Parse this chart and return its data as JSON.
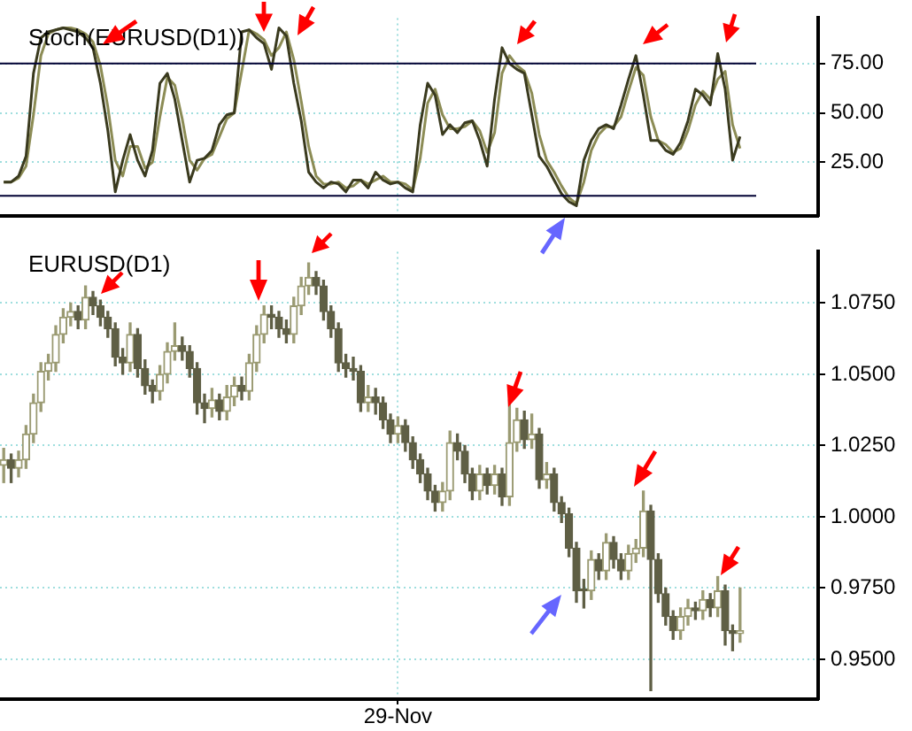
{
  "chart_data": [
    {
      "type": "line",
      "title": "Stoch(EURUSD(D1))",
      "categories": [
        null,
        null,
        null,
        null,
        null,
        null,
        null,
        null,
        null,
        null,
        null,
        null,
        null,
        null,
        null,
        null,
        null,
        null,
        null,
        null,
        null,
        null,
        null,
        null,
        null,
        null,
        null,
        null,
        null,
        null,
        null,
        null,
        null,
        null,
        null,
        null,
        null,
        null,
        null,
        null,
        null,
        null,
        null,
        null,
        null,
        null,
        null,
        null,
        null,
        null,
        null,
        null,
        null,
        null,
        null,
        null,
        null,
        null,
        null,
        null,
        null,
        null,
        null,
        null,
        null,
        null,
        null,
        null,
        null,
        null,
        null,
        null,
        null,
        null,
        null,
        null,
        null,
        null,
        null,
        null,
        null,
        null,
        null,
        null,
        null,
        null,
        null,
        null,
        null,
        null,
        null,
        null,
        null,
        null,
        null,
        null,
        null,
        null,
        null,
        null,
        null,
        null,
        null,
        null,
        null,
        null,
        null,
        null,
        null,
        null
      ],
      "series": [
        {
          "color": "#3a3a1e",
          "values": [
            15,
            15,
            18,
            28,
            70,
            88,
            91,
            92,
            93,
            92,
            91,
            88,
            83,
            65,
            41,
            10,
            26,
            39,
            26,
            18,
            31,
            65,
            70,
            57,
            36,
            15,
            26,
            27,
            31,
            44,
            49,
            50,
            91,
            92,
            88,
            85,
            72,
            93,
            89,
            65,
            46,
            20,
            15,
            12,
            15,
            14,
            10,
            16,
            16,
            12,
            20,
            16,
            14,
            15,
            12,
            10,
            44,
            65,
            59,
            39,
            44,
            40,
            45,
            46,
            36,
            23,
            57,
            83,
            75,
            72,
            70,
            49,
            28,
            23,
            16,
            9,
            5,
            3,
            26,
            36,
            42,
            44,
            42,
            54,
            67,
            79,
            59,
            36,
            36,
            31,
            29,
            35,
            46,
            62,
            59,
            54,
            80,
            62,
            26,
            38,
            null,
            null,
            null,
            null,
            null,
            null,
            null,
            null,
            null,
            null
          ]
        },
        {
          "color": "#8c8c55",
          "values": [
            15,
            15,
            17,
            23,
            49,
            79,
            90,
            92,
            93,
            93,
            92,
            90,
            86,
            74,
            53,
            26,
            18,
            33,
            33,
            22,
            25,
            48,
            68,
            64,
            47,
            26,
            21,
            27,
            29,
            38,
            47,
            50,
            71,
            92,
            90,
            87,
            79,
            83,
            91,
            77,
            56,
            33,
            18,
            14,
            14,
            15,
            12,
            13,
            16,
            14,
            16,
            18,
            15,
            15,
            14,
            11,
            27,
            55,
            62,
            49,
            42,
            42,
            43,
            46,
            41,
            30,
            40,
            70,
            79,
            74,
            71,
            60,
            39,
            26,
            20,
            13,
            7,
            4,
            15,
            31,
            39,
            43,
            43,
            48,
            61,
            73,
            69,
            48,
            36,
            34,
            30,
            32,
            41,
            54,
            61,
            57,
            67,
            71,
            44,
            32,
            null,
            null,
            null,
            null,
            null,
            null,
            null,
            null,
            null,
            null
          ]
        }
      ],
      "ylim": [
        -2,
        98
      ],
      "yticks": [
        {
          "value": 25,
          "label": "25.00"
        },
        {
          "value": 50,
          "label": "50.00"
        },
        {
          "value": 75,
          "label": "75.00"
        }
      ],
      "ref_lines": [
        {
          "axis": "y",
          "value": 75,
          "color": "#000033"
        },
        {
          "axis": "y",
          "value": 8,
          "color": "#000033"
        }
      ],
      "grid": true,
      "legend": false,
      "tick_labels": "y",
      "marker": "none"
    },
    {
      "type": "candlestick",
      "title": "EURUSD(D1)",
      "colors": [
        "#9a9a72",
        "#5f5f45",
        "#9a9a72",
        "#9a9a72",
        "#9a9a72",
        "#9a9a72",
        "#9a9a72",
        "#9a9a72",
        "#9a9a72",
        "#9a9a72",
        "#5f5f45",
        "#9a9a72",
        "#5f5f45",
        "#5f5f45",
        "#5f5f45",
        "#5f5f45",
        "#5f5f45",
        "#9a9a72",
        "#5f5f45",
        "#5f5f45",
        "#5f5f45",
        "#9a9a72",
        "#9a9a72",
        "#9a9a72",
        "#5f5f45",
        "#5f5f45",
        "#5f5f45",
        "#5f5f45",
        "#9a9a72",
        "#5f5f45",
        "#9a9a72",
        "#9a9a72",
        "#5f5f45",
        "#9a9a72",
        "#9a9a72",
        "#9a9a72",
        "#5f5f45",
        "#5f5f45",
        "#5f5f45",
        "#9a9a72",
        "#9a9a72",
        "#9a9a72",
        "#5f5f45",
        "#5f5f45",
        "#5f5f45",
        "#5f5f45",
        "#5f5f45",
        "#5f5f45",
        "#5f5f45",
        "#9a9a72",
        "#5f5f45",
        "#5f5f45",
        "#5f5f45",
        "#9a9a72",
        "#5f5f45",
        "#5f5f45",
        "#5f5f45",
        "#5f5f45",
        "#5f5f45",
        "#9a9a72",
        "#9a9a72",
        "#5f5f45",
        "#5f5f45",
        "#5f5f45",
        "#9a9a72",
        "#5f5f45",
        "#9a9a72",
        "#5f5f45",
        "#9a9a72",
        "#9a9a72",
        "#5f5f45",
        "#9a9a72",
        "#5f5f45",
        "#9a9a72",
        "#5f5f45",
        "#5f5f45",
        "#5f5f45",
        "#5f5f45",
        "#5f5f45",
        "#9a9a72",
        "#5f5f45",
        "#9a9a72",
        "#5f5f45",
        "#5f5f45",
        "#9a9a72",
        "#9a9a72",
        "#9a9a72",
        "#5f5f45",
        "#5f5f45",
        "#5f5f45",
        "#5f5f45",
        "#9a9a72",
        "#9a9a72",
        "#5f5f45",
        "#9a9a72",
        "#5f5f45",
        "#9a9a72",
        "#5f5f45",
        "#5f5f45",
        "#9a9a72",
        null,
        null,
        null,
        null,
        null,
        null,
        null,
        null,
        null,
        null
      ],
      "categories": [
        null,
        null,
        null,
        null,
        null,
        null,
        null,
        null,
        null,
        null,
        null,
        null,
        null,
        null,
        null,
        null,
        null,
        null,
        null,
        null,
        null,
        null,
        null,
        null,
        null,
        null,
        null,
        null,
        null,
        null,
        null,
        null,
        null,
        null,
        null,
        null,
        null,
        null,
        null,
        null,
        null,
        null,
        null,
        null,
        null,
        null,
        null,
        null,
        null,
        null,
        null,
        null,
        null,
        "29-Nov",
        null,
        null,
        null,
        null,
        null,
        null,
        null,
        null,
        null,
        null,
        null,
        null,
        null,
        null,
        null,
        null,
        null,
        null,
        null,
        null,
        null,
        null,
        null,
        null,
        null,
        null,
        null,
        null,
        null,
        null,
        null,
        null,
        null,
        null,
        null,
        null,
        null,
        null,
        null,
        null,
        null,
        null,
        null,
        null,
        null,
        null,
        null,
        null,
        null,
        null,
        null,
        null,
        null,
        null,
        null,
        null
      ],
      "ohlc": [
        [
          1.018,
          1.024,
          1.012,
          1.02
        ],
        [
          1.02,
          1.022,
          1.012,
          1.017
        ],
        [
          1.017,
          1.023,
          1.014,
          1.02
        ],
        [
          1.02,
          1.032,
          1.017,
          1.029
        ],
        [
          1.029,
          1.043,
          1.026,
          1.04
        ],
        [
          1.04,
          1.054,
          1.037,
          1.051
        ],
        [
          1.051,
          1.057,
          1.048,
          1.054
        ],
        [
          1.054,
          1.067,
          1.051,
          1.064
        ],
        [
          1.064,
          1.073,
          1.061,
          1.07
        ],
        [
          1.07,
          1.075,
          1.067,
          1.072
        ],
        [
          1.072,
          1.074,
          1.066,
          1.069
        ],
        [
          1.069,
          1.081,
          1.066,
          1.077
        ],
        [
          1.077,
          1.079,
          1.071,
          1.074
        ],
        [
          1.074,
          1.076,
          1.067,
          1.07
        ],
        [
          1.07,
          1.072,
          1.063,
          1.066
        ],
        [
          1.066,
          1.068,
          1.053,
          1.056
        ],
        [
          1.056,
          1.059,
          1.05,
          1.054
        ],
        [
          1.054,
          1.068,
          1.051,
          1.064
        ],
        [
          1.064,
          1.066,
          1.049,
          1.052
        ],
        [
          1.052,
          1.055,
          1.043,
          1.046
        ],
        [
          1.046,
          1.048,
          1.04,
          1.044
        ],
        [
          1.044,
          1.053,
          1.041,
          1.05
        ],
        [
          1.05,
          1.061,
          1.047,
          1.058
        ],
        [
          1.058,
          1.068,
          1.055,
          1.06
        ],
        [
          1.06,
          1.063,
          1.055,
          1.058
        ],
        [
          1.058,
          1.06,
          1.049,
          1.052
        ],
        [
          1.052,
          1.054,
          1.036,
          1.04
        ],
        [
          1.04,
          1.043,
          1.033,
          1.038
        ],
        [
          1.038,
          1.045,
          1.035,
          1.041
        ],
        [
          1.041,
          1.043,
          1.034,
          1.037
        ],
        [
          1.037,
          1.046,
          1.034,
          1.042
        ],
        [
          1.042,
          1.049,
          1.039,
          1.046
        ],
        [
          1.046,
          1.049,
          1.041,
          1.044
        ],
        [
          1.044,
          1.057,
          1.041,
          1.054
        ],
        [
          1.054,
          1.067,
          1.051,
          1.064
        ],
        [
          1.064,
          1.074,
          1.061,
          1.071
        ],
        [
          1.071,
          1.074,
          1.066,
          1.07
        ],
        [
          1.07,
          1.072,
          1.063,
          1.066
        ],
        [
          1.066,
          1.069,
          1.061,
          1.064
        ],
        [
          1.064,
          1.077,
          1.061,
          1.074
        ],
        [
          1.074,
          1.084,
          1.071,
          1.081
        ],
        [
          1.081,
          1.089,
          1.078,
          1.084
        ],
        [
          1.084,
          1.086,
          1.078,
          1.081
        ],
        [
          1.081,
          1.083,
          1.069,
          1.072
        ],
        [
          1.072,
          1.074,
          1.063,
          1.066
        ],
        [
          1.066,
          1.068,
          1.051,
          1.054
        ],
        [
          1.054,
          1.057,
          1.049,
          1.052
        ],
        [
          1.052,
          1.056,
          1.048,
          1.051
        ],
        [
          1.051,
          1.053,
          1.037,
          1.04
        ],
        [
          1.04,
          1.046,
          1.037,
          1.042
        ],
        [
          1.042,
          1.045,
          1.036,
          1.04
        ],
        [
          1.04,
          1.042,
          1.031,
          1.034
        ],
        [
          1.034,
          1.036,
          1.026,
          1.029
        ],
        [
          1.029,
          1.035,
          1.026,
          1.032
        ],
        [
          1.032,
          1.034,
          1.023,
          1.026
        ],
        [
          1.026,
          1.028,
          1.017,
          1.02
        ],
        [
          1.02,
          1.022,
          1.012,
          1.015
        ],
        [
          1.015,
          1.017,
          1.006,
          1.009
        ],
        [
          1.009,
          1.011,
          1.002,
          1.005
        ],
        [
          1.005,
          1.012,
          1.002,
          1.009
        ],
        [
          1.009,
          1.03,
          1.006,
          1.026
        ],
        [
          1.026,
          1.029,
          1.02,
          1.023
        ],
        [
          1.023,
          1.025,
          1.012,
          1.015
        ],
        [
          1.015,
          1.017,
          1.006,
          1.009
        ],
        [
          1.009,
          1.018,
          1.006,
          1.015
        ],
        [
          1.015,
          1.017,
          1.008,
          1.011
        ],
        [
          1.011,
          1.018,
          1.008,
          1.015
        ],
        [
          1.015,
          1.017,
          1.004,
          1.007
        ],
        [
          1.007,
          1.041,
          1.004,
          1.026
        ],
        [
          1.026,
          1.038,
          1.023,
          1.034
        ],
        [
          1.034,
          1.037,
          1.024,
          1.027
        ],
        [
          1.027,
          1.036,
          1.024,
          1.029
        ],
        [
          1.029,
          1.031,
          1.01,
          1.013
        ],
        [
          1.013,
          1.019,
          1.01,
          1.015
        ],
        [
          1.015,
          1.017,
          1.002,
          1.005
        ],
        [
          1.005,
          1.007,
          0.998,
          1.001
        ],
        [
          1.001,
          1.003,
          0.986,
          0.989
        ],
        [
          0.989,
          0.991,
          0.97,
          0.974
        ],
        [
          0.974,
          0.978,
          0.968,
          0.974
        ],
        [
          0.974,
          0.988,
          0.971,
          0.985
        ],
        [
          0.985,
          0.987,
          0.978,
          0.981
        ],
        [
          0.981,
          0.994,
          0.978,
          0.991
        ],
        [
          0.991,
          0.993,
          0.982,
          0.985
        ],
        [
          0.985,
          0.987,
          0.978,
          0.981
        ],
        [
          0.981,
          0.99,
          0.978,
          0.987
        ],
        [
          0.987,
          0.992,
          0.984,
          0.989
        ],
        [
          0.989,
          1.009,
          0.986,
          1.002
        ],
        [
          1.002,
          1.004,
          0.939,
          0.985
        ],
        [
          0.985,
          0.987,
          0.97,
          0.973
        ],
        [
          0.973,
          0.975,
          0.962,
          0.965
        ],
        [
          0.965,
          0.967,
          0.957,
          0.96
        ],
        [
          0.96,
          0.968,
          0.957,
          0.965
        ],
        [
          0.965,
          0.971,
          0.962,
          0.968
        ],
        [
          0.968,
          0.97,
          0.964,
          0.967
        ],
        [
          0.967,
          0.974,
          0.964,
          0.971
        ],
        [
          0.971,
          0.973,
          0.965,
          0.968
        ],
        [
          0.968,
          0.979,
          0.965,
          0.974
        ],
        [
          0.974,
          0.976,
          0.955,
          0.96
        ],
        [
          0.96,
          0.962,
          0.953,
          0.959
        ],
        [
          0.959,
          0.975,
          0.956,
          0.96
        ],
        null,
        null,
        null,
        null,
        null,
        null,
        null,
        null,
        null,
        null
      ],
      "ylim": [
        0.936,
        1.093
      ],
      "yticks": [
        {
          "value": 0.95,
          "label": "0.9500"
        },
        {
          "value": 0.975,
          "label": "0.9750"
        },
        {
          "value": 1.0,
          "label": "1.0000"
        },
        {
          "value": 1.025,
          "label": "1.0250"
        },
        {
          "value": 1.05,
          "label": "1.0500"
        },
        {
          "value": 1.075,
          "label": "1.0750"
        }
      ],
      "grid": true,
      "legend": false
    }
  ]
}
